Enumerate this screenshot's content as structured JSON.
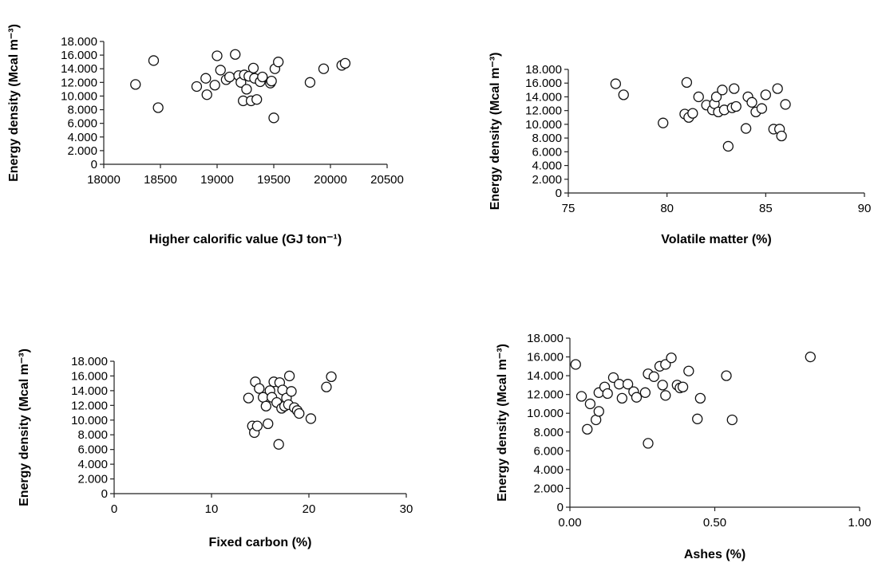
{
  "chart_data": [
    {
      "type": "scatter",
      "ylabel": "Energy density (Mcal m⁻³)",
      "xlabel": "Higher calorific value (GJ ton⁻¹)",
      "xlim": [
        18000,
        20500
      ],
      "ylim": [
        0,
        18000
      ],
      "xticks": [
        "18000",
        "18500",
        "19000",
        "19500",
        "20000",
        "20500"
      ],
      "yticks": [
        "0",
        "2.000",
        "4.000",
        "6.000",
        "8.000",
        "10.000",
        "12.000",
        "14.000",
        "16.000",
        "18.000"
      ],
      "x": [
        18280,
        18440,
        18480,
        18820,
        18900,
        18910,
        18980,
        19000,
        19030,
        19080,
        19110,
        19160,
        19190,
        19210,
        19230,
        19240,
        19260,
        19280,
        19300,
        19320,
        19330,
        19350,
        19380,
        19400,
        19470,
        19480,
        19500,
        19510,
        19540,
        19820,
        19940,
        20100,
        20130
      ],
      "y": [
        11700,
        15200,
        8300,
        11400,
        12600,
        10200,
        11600,
        15900,
        13800,
        12400,
        12800,
        16100,
        13000,
        12000,
        9300,
        13100,
        11000,
        12900,
        9300,
        14100,
        12600,
        9500,
        12100,
        12800,
        11900,
        12200,
        6800,
        14000,
        15000,
        12000,
        14000,
        14500,
        14800
      ]
    },
    {
      "type": "scatter",
      "ylabel": "Energy density (Mcal m⁻³)",
      "xlabel": "Volatile matter (%)",
      "xlim": [
        75,
        90
      ],
      "ylim": [
        0,
        18000
      ],
      "xticks": [
        "75",
        "80",
        "85",
        "90"
      ],
      "yticks": [
        "0",
        "2.000",
        "4.000",
        "6.000",
        "8.000",
        "10.000",
        "12.000",
        "14.000",
        "16.000",
        "18.000"
      ],
      "x": [
        77.4,
        77.8,
        79.8,
        80.9,
        81.1,
        81.3,
        81.6,
        82.0,
        82.3,
        82.4,
        82.5,
        82.6,
        82.8,
        82.9,
        83.1,
        83.3,
        83.4,
        83.5,
        84.0,
        84.1,
        84.3,
        84.5,
        84.8,
        85.0,
        85.4,
        85.6,
        85.7,
        85.8,
        86.0,
        81.0
      ],
      "y": [
        15900,
        14300,
        10200,
        11500,
        11000,
        11600,
        14000,
        12800,
        12100,
        13000,
        14000,
        11800,
        15000,
        12100,
        6800,
        12400,
        15200,
        12600,
        9400,
        14000,
        13200,
        11800,
        12300,
        14300,
        9300,
        15200,
        9300,
        8300,
        12900,
        16100
      ]
    },
    {
      "type": "scatter",
      "ylabel": "Energy density (Mcal m⁻³)",
      "xlabel": "Fixed carbon (%)",
      "xlim": [
        0,
        30
      ],
      "ylim": [
        0,
        18000
      ],
      "xticks": [
        "0",
        "10",
        "20",
        "30"
      ],
      "yticks": [
        "0",
        "2.000",
        "4.000",
        "6.000",
        "8.000",
        "10.000",
        "12.000",
        "14.000",
        "16.000",
        "18.000"
      ],
      "x": [
        13.8,
        14.2,
        14.4,
        14.5,
        14.7,
        14.9,
        15.3,
        15.6,
        15.8,
        16.0,
        16.2,
        16.4,
        16.7,
        16.9,
        17.0,
        17.2,
        17.3,
        17.5,
        17.7,
        17.9,
        18.0,
        18.2,
        18.5,
        18.8,
        19.0,
        20.2,
        21.8,
        22.3
      ],
      "y": [
        13000,
        9200,
        8300,
        15200,
        9200,
        14300,
        13100,
        11900,
        9500,
        14000,
        13100,
        15200,
        12400,
        6700,
        15100,
        11600,
        14100,
        11900,
        13000,
        12100,
        16000,
        13900,
        11700,
        11300,
        10900,
        10200,
        14500,
        15900
      ]
    },
    {
      "type": "scatter",
      "ylabel": "Energy density (Mcal m⁻³)",
      "xlabel": "Ashes  (%)",
      "xlim": [
        0,
        1
      ],
      "ylim": [
        0,
        18000
      ],
      "xticks": [
        "0.00",
        "0.50",
        "1.00"
      ],
      "yticks": [
        "0",
        "2.000",
        "4.000",
        "6.000",
        "8.000",
        "10.000",
        "12.000",
        "14.000",
        "16.000",
        "18.000"
      ],
      "x": [
        0.02,
        0.04,
        0.06,
        0.07,
        0.09,
        0.1,
        0.1,
        0.12,
        0.13,
        0.15,
        0.17,
        0.18,
        0.2,
        0.22,
        0.23,
        0.26,
        0.27,
        0.27,
        0.29,
        0.31,
        0.32,
        0.33,
        0.33,
        0.35,
        0.37,
        0.38,
        0.39,
        0.41,
        0.44,
        0.45,
        0.54,
        0.56,
        0.83
      ],
      "y": [
        15200,
        11800,
        8300,
        11000,
        9300,
        10200,
        12200,
        12800,
        12100,
        13800,
        13100,
        11600,
        13100,
        12300,
        11700,
        12200,
        6800,
        14200,
        13900,
        15000,
        13000,
        15200,
        11900,
        15900,
        13000,
        12700,
        12800,
        14500,
        9400,
        11600,
        14000,
        9300,
        16000
      ]
    }
  ]
}
